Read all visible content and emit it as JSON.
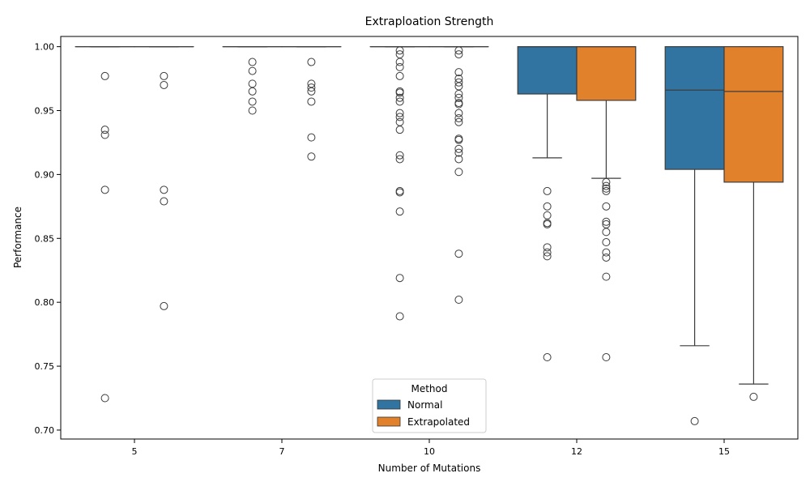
{
  "chart_data": {
    "type": "box",
    "title": "Extraploation Strength",
    "xlabel": "Number of Mutations",
    "ylabel": "Performance",
    "ylim": [
      0.693,
      1.008
    ],
    "yticks": [
      "0.70",
      "0.75",
      "0.80",
      "0.85",
      "0.90",
      "0.95",
      "1.00"
    ],
    "categories": [
      "5",
      "7",
      "10",
      "12",
      "15"
    ],
    "legend": {
      "title": "Method",
      "position": "lower-center"
    },
    "series": [
      {
        "name": "Normal",
        "color": "#3274a1",
        "boxes": [
          {
            "q1": 1.0,
            "median": 1.0,
            "q3": 1.0,
            "whisker_low": 1.0,
            "whisker_high": 1.0,
            "outliers": [
              0.977,
              0.935,
              0.931,
              0.888,
              0.725
            ]
          },
          {
            "q1": 1.0,
            "median": 1.0,
            "q3": 1.0,
            "whisker_low": 1.0,
            "whisker_high": 1.0,
            "outliers": [
              0.988,
              0.981,
              0.971,
              0.965,
              0.957,
              0.95
            ]
          },
          {
            "q1": 1.0,
            "median": 1.0,
            "q3": 1.0,
            "whisker_low": 1.0,
            "whisker_high": 1.0,
            "outliers": [
              0.997,
              0.994,
              0.988,
              0.984,
              0.977,
              0.965,
              0.964,
              0.96,
              0.957,
              0.948,
              0.945,
              0.941,
              0.935,
              0.915,
              0.912,
              0.887,
              0.886,
              0.871,
              0.819,
              0.789
            ]
          },
          {
            "q1": 0.963,
            "median": 1.0,
            "q3": 1.0,
            "whisker_low": 0.913,
            "whisker_high": 1.0,
            "outliers": [
              0.887,
              0.875,
              0.868,
              0.862,
              0.861,
              0.843,
              0.839,
              0.836,
              0.757
            ]
          },
          {
            "q1": 0.904,
            "median": 0.966,
            "q3": 1.0,
            "whisker_low": 0.766,
            "whisker_high": 1.0,
            "outliers": [
              0.707
            ]
          }
        ]
      },
      {
        "name": "Extrapolated",
        "color": "#e1812c",
        "boxes": [
          {
            "q1": 1.0,
            "median": 1.0,
            "q3": 1.0,
            "whisker_low": 1.0,
            "whisker_high": 1.0,
            "outliers": [
              0.977,
              0.97,
              0.888,
              0.879,
              0.797
            ]
          },
          {
            "q1": 1.0,
            "median": 1.0,
            "q3": 1.0,
            "whisker_low": 1.0,
            "whisker_high": 1.0,
            "outliers": [
              0.988,
              0.971,
              0.968,
              0.965,
              0.957,
              0.929,
              0.914
            ]
          },
          {
            "q1": 1.0,
            "median": 1.0,
            "q3": 1.0,
            "whisker_low": 1.0,
            "whisker_high": 1.0,
            "outliers": [
              0.997,
              0.994,
              0.98,
              0.975,
              0.972,
              0.969,
              0.963,
              0.96,
              0.956,
              0.955,
              0.948,
              0.944,
              0.941,
              0.928,
              0.927,
              0.92,
              0.917,
              0.912,
              0.902,
              0.838,
              0.802
            ]
          },
          {
            "q1": 0.958,
            "median": 1.0,
            "q3": 1.0,
            "whisker_low": 0.897,
            "whisker_high": 1.0,
            "outliers": [
              0.894,
              0.891,
              0.889,
              0.887,
              0.875,
              0.863,
              0.861,
              0.855,
              0.847,
              0.839,
              0.835,
              0.82,
              0.757
            ]
          },
          {
            "q1": 0.894,
            "median": 0.965,
            "q3": 1.0,
            "whisker_low": 0.736,
            "whisker_high": 1.0,
            "outliers": [
              0.726
            ]
          }
        ]
      }
    ]
  }
}
